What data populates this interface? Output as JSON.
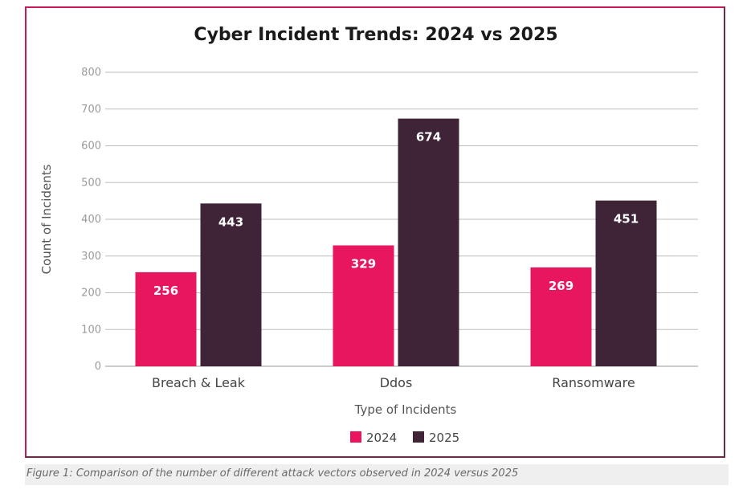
{
  "chart_data": {
    "type": "bar",
    "title": "Cyber Incident Trends: 2024 vs 2025",
    "xlabel": "Type of Incidents",
    "ylabel": "Count of Incidents",
    "categories": [
      "Breach & Leak",
      "Ddos",
      "Ransomware"
    ],
    "series": [
      {
        "name": "2024",
        "values": [
          256,
          329,
          269
        ],
        "color": "#e8155f"
      },
      {
        "name": "2025",
        "values": [
          443,
          674,
          451
        ],
        "color": "#3f2438"
      }
    ],
    "yticks": [
      "0",
      "100",
      "200",
      "300",
      "400",
      "500",
      "600",
      "700",
      "800"
    ],
    "ylim": [
      0,
      800
    ],
    "grid": true,
    "legend": "bottom-center"
  },
  "caption": "Figure 1: Comparison of the number of different attack vectors observed in 2024 versus 2025",
  "colors": {
    "frame": "#c81a5a",
    "grid": "#bdbdbd"
  }
}
